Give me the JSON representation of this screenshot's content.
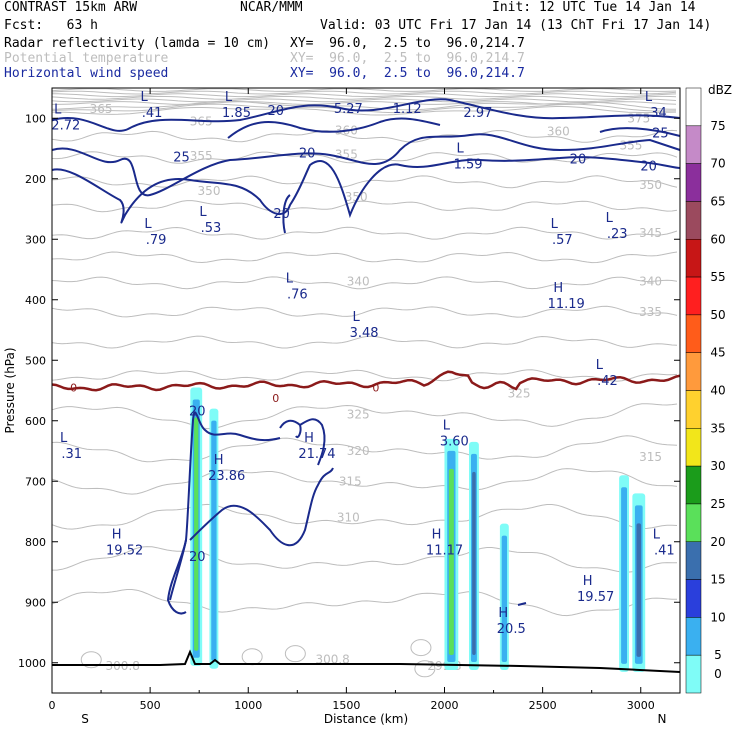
{
  "header": {
    "left1": "CONTRAST 15km ARW",
    "center1": "NCAR/MMM",
    "right1": "Init: 12 UTC Tue 14 Jan 14",
    "left2": "Fcst:   63 h",
    "right2": "Valid: 03 UTC Fri 17 Jan 14 (13 ChT Fri 17 Jan 14)",
    "field1": "Radar reflectivity (lamda = 10 cm)",
    "xy1": "XY=  96.0,  2.5 to  96.0,214.7",
    "field2": "Potential temperature",
    "xy2": "XY=  96.0,  2.5 to  96.0,214.7",
    "field3": "Horizontal wind speed",
    "xy3": "XY=  96.0,  2.5 to  96.0,214.7"
  },
  "colors": {
    "wind": "#1a2a8c",
    "theta": "#bdbdbd",
    "zero_line": "#8b1a1a",
    "terrain": "#000000",
    "hl_label": "#1a2a8c"
  },
  "chart_data": {
    "type": "cross-section",
    "xlabel": "Distance (km)",
    "ylabel": "Pressure (hPa)",
    "xlim": [
      0,
      3200
    ],
    "ylim": [
      1050,
      50
    ],
    "x_ticks": [
      "0",
      "500",
      "1000",
      "1500",
      "2000",
      "2500",
      "3000"
    ],
    "y_ticks": [
      "100",
      "200",
      "300",
      "400",
      "500",
      "600",
      "700",
      "800",
      "900",
      "1000"
    ],
    "end_labels": {
      "left": "S",
      "right": "N"
    },
    "colorbar": {
      "unit": "dBZ",
      "levels": [
        "75",
        "70",
        "65",
        "60",
        "55",
        "50",
        "45",
        "40",
        "35",
        "30",
        "25",
        "20",
        "15",
        "10",
        "5",
        "0"
      ],
      "colors": [
        "#ffffff",
        "#c58ac8",
        "#8b2f9c",
        "#9b4a5e",
        "#c71616",
        "#ff1f1f",
        "#ff5c1a",
        "#ff9a3c",
        "#ffd12e",
        "#f2e61a",
        "#1b9c1b",
        "#5ae05a",
        "#3a6fae",
        "#2a3fdc",
        "#3ab0f0",
        "#7ffcf7"
      ]
    },
    "theta_labels": [
      {
        "v": "365",
        "x": 250,
        "p": 85
      },
      {
        "v": "365",
        "x": 760,
        "p": 105
      },
      {
        "v": "360",
        "x": 1500,
        "p": 120
      },
      {
        "v": "360",
        "x": 2580,
        "p": 122
      },
      {
        "v": "375",
        "x": 2990,
        "p": 100
      },
      {
        "v": "355",
        "x": 760,
        "p": 162
      },
      {
        "v": "355",
        "x": 1500,
        "p": 160
      },
      {
        "v": "355",
        "x": 2950,
        "p": 145
      },
      {
        "v": "350",
        "x": 800,
        "p": 220
      },
      {
        "v": "350",
        "x": 1550,
        "p": 230
      },
      {
        "v": "350",
        "x": 3050,
        "p": 210
      },
      {
        "v": "345",
        "x": 3050,
        "p": 290
      },
      {
        "v": "340",
        "x": 1560,
        "p": 370
      },
      {
        "v": "340",
        "x": 3050,
        "p": 370
      },
      {
        "v": "335",
        "x": 3050,
        "p": 420
      },
      {
        "v": "325",
        "x": 1560,
        "p": 590
      },
      {
        "v": "325",
        "x": 2380,
        "p": 555
      },
      {
        "v": "320",
        "x": 1560,
        "p": 650
      },
      {
        "v": "315",
        "x": 1520,
        "p": 700
      },
      {
        "v": "315",
        "x": 3050,
        "p": 660
      },
      {
        "v": "310",
        "x": 1510,
        "p": 760
      },
      {
        "v": "300.8",
        "x": 360,
        "p": 1005
      },
      {
        "v": "300.8",
        "x": 1430,
        "p": 995
      },
      {
        "v": "299.3",
        "x": 2000,
        "p": 1005
      }
    ],
    "wind_labels": [
      {
        "v": "25",
        "x": 660,
        "p": 165
      },
      {
        "v": "20",
        "x": 1140,
        "p": 88
      },
      {
        "v": "5.27",
        "x": 1510,
        "p": 85
      },
      {
        "v": "1.12",
        "x": 1810,
        "p": 85
      },
      {
        "v": "20",
        "x": 1300,
        "p": 158
      },
      {
        "v": "20",
        "x": 1170,
        "p": 258
      },
      {
        "v": "25",
        "x": 3100,
        "p": 125
      },
      {
        "v": "20",
        "x": 2680,
        "p": 168
      },
      {
        "v": "20",
        "x": 3040,
        "p": 180
      },
      {
        "v": "20",
        "x": 740,
        "p": 585
      },
      {
        "v": "20",
        "x": 740,
        "p": 825
      }
    ],
    "hl_labels": [
      {
        "type": "L",
        "value": ".41",
        "x": 500,
        "p": 85
      },
      {
        "type": "L",
        "value": "1.85",
        "x": 930,
        "p": 85
      },
      {
        "type": "L",
        "value": "2.72",
        "x": 60,
        "p": 105
      },
      {
        "type": "L",
        "value": ".34",
        "x": 3070,
        "p": 85
      },
      {
        "type": "",
        "value": "2.97",
        "x": 2160,
        "p": 85
      },
      {
        "type": "L",
        "value": "1.59",
        "x": 2110,
        "p": 170
      },
      {
        "type": "L",
        "value": ".53",
        "x": 800,
        "p": 275
      },
      {
        "type": "L",
        "value": ".79",
        "x": 520,
        "p": 295
      },
      {
        "type": "L",
        "value": ".57",
        "x": 2590,
        "p": 295
      },
      {
        "type": "L",
        "value": ".23",
        "x": 2870,
        "p": 285
      },
      {
        "type": "L",
        "value": ".76",
        "x": 1240,
        "p": 385
      },
      {
        "type": "H",
        "value": "11.19",
        "x": 2610,
        "p": 400
      },
      {
        "type": "L",
        "value": "3.48",
        "x": 1580,
        "p": 448
      },
      {
        "type": "L",
        "value": ".42",
        "x": 2820,
        "p": 528
      },
      {
        "type": "L",
        "value": "3.60",
        "x": 2040,
        "p": 628
      },
      {
        "type": "L",
        "value": ".31",
        "x": 90,
        "p": 648
      },
      {
        "type": "H",
        "value": "21.74",
        "x": 1340,
        "p": 648
      },
      {
        "type": "H",
        "value": "23.86",
        "x": 880,
        "p": 685
      },
      {
        "type": "H",
        "value": "19.52",
        "x": 360,
        "p": 808
      },
      {
        "type": "H",
        "value": "11.17",
        "x": 1990,
        "p": 808
      },
      {
        "type": "L",
        "value": ".41",
        "x": 3110,
        "p": 808
      },
      {
        "type": "H",
        "value": "19.57",
        "x": 2760,
        "p": 885
      },
      {
        "type": "H",
        "value": "20.5",
        "x": 2330,
        "p": 938
      }
    ],
    "zero_labels": [
      {
        "v": "0",
        "x": 110,
        "p": 545
      },
      {
        "v": "0",
        "x": 1140,
        "p": 562
      },
      {
        "v": "0",
        "x": 1650,
        "p": 545
      }
    ],
    "reflectivity_columns": [
      {
        "x": 735,
        "width_km": 40,
        "p_top": 545,
        "p_bot": 1005,
        "max_dbz": 20
      },
      {
        "x": 825,
        "width_km": 25,
        "p_top": 580,
        "p_bot": 1010,
        "max_dbz": 10
      },
      {
        "x": 2035,
        "width_km": 50,
        "p_top": 630,
        "p_bot": 1012,
        "max_dbz": 20
      },
      {
        "x": 2150,
        "width_km": 30,
        "p_top": 635,
        "p_bot": 1012,
        "max_dbz": 15
      },
      {
        "x": 2305,
        "width_km": 25,
        "p_top": 770,
        "p_bot": 1012,
        "max_dbz": 10
      },
      {
        "x": 2915,
        "width_km": 30,
        "p_top": 690,
        "p_bot": 1015,
        "max_dbz": 10
      },
      {
        "x": 2990,
        "width_km": 45,
        "p_top": 720,
        "p_bot": 1015,
        "max_dbz": 15
      }
    ]
  }
}
